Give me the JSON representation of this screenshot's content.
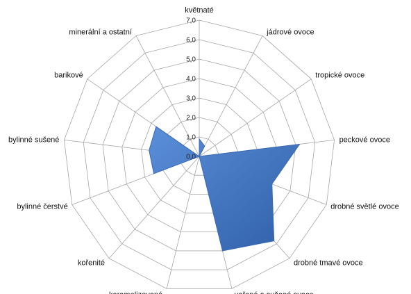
{
  "chart_data": {
    "type": "radar",
    "categories": [
      "květnaté",
      "jádrové ovoce",
      "tropické ovoce",
      "peckové ovoce",
      "drobné světlé ovoce",
      "drobné tmavé ovoce",
      "vařené a sušené ovoce",
      "karamelizované",
      "kořenité",
      "bylinné čerstvé",
      "bylinné sušené",
      "barikové",
      "minerální a ostatní"
    ],
    "series": [
      {
        "values": [
          0.9,
          0.6,
          0.0,
          5.2,
          4.0,
          5.8,
          5.0,
          0.0,
          0.0,
          2.5,
          2.6,
          2.7,
          0.0
        ]
      }
    ],
    "tick_labels": [
      "0,0",
      "1,0",
      "2,0",
      "3,0",
      "4,0",
      "5,0",
      "6,0",
      "7,0"
    ],
    "rmin": 0,
    "rmax": 7,
    "grid": true,
    "legend": "none",
    "colors": {
      "fill": "#4a7fcf",
      "fill_dark": "#2f5fa7",
      "stroke": "#3a6bb8",
      "grid": "#a6a6a6"
    }
  }
}
